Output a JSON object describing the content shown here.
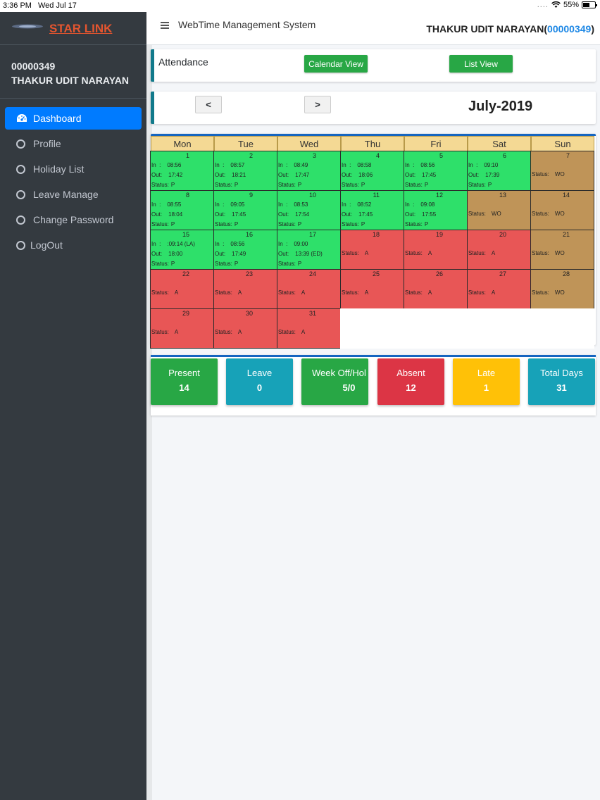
{
  "statusbar": {
    "time": "3:36 PM",
    "date": "Wed Jul 17",
    "signal": "....",
    "battery": "55%",
    "battery_level": 0.55
  },
  "sidebar": {
    "brand": "STAR LINK",
    "user_id": "00000349",
    "user_name": "THAKUR UDIT NARAYAN",
    "items": [
      {
        "label": "Dashboard",
        "icon": "tachometer-icon",
        "active": true
      },
      {
        "label": "Profile",
        "icon": "circle-icon"
      },
      {
        "label": "Holiday List",
        "icon": "circle-icon"
      },
      {
        "label": "Leave Manage",
        "icon": "circle-icon"
      },
      {
        "label": "Change Password",
        "icon": "circle-icon"
      },
      {
        "label": "LogOut",
        "icon": "circle-icon"
      }
    ]
  },
  "header": {
    "app_title": "WebTime Management System",
    "user_name": "THAKUR UDIT NARAYAN",
    "user_id": "00000349",
    "paren_open": "(",
    "paren_close": ")"
  },
  "attendance": {
    "label": "Attendance",
    "calendar_view": "Calendar View",
    "list_view": "List View"
  },
  "month_nav": {
    "prev": "<",
    "next": ">",
    "title": "July-2019"
  },
  "calendar": {
    "days": [
      "Mon",
      "Tue",
      "Wed",
      "Thu",
      "Fri",
      "Sat",
      "Sun"
    ],
    "in_label": "In  :",
    "out_label": "Out:",
    "status_label": "Status:",
    "cells": [
      {
        "day": "1",
        "status": "P",
        "in": "08:56",
        "out": "17:42"
      },
      {
        "day": "2",
        "status": "P",
        "in": "08:57",
        "out": "18:21"
      },
      {
        "day": "3",
        "status": "P",
        "in": "08:49",
        "out": "17:47"
      },
      {
        "day": "4",
        "status": "P",
        "in": "08:58",
        "out": "18:06"
      },
      {
        "day": "5",
        "status": "P",
        "in": "08:56",
        "out": "17:45"
      },
      {
        "day": "6",
        "status": "P",
        "in": "09:10",
        "out": "17:39"
      },
      {
        "day": "7",
        "status": "WO"
      },
      {
        "day": "8",
        "status": "P",
        "in": "08:55",
        "out": "18:04"
      },
      {
        "day": "9",
        "status": "P",
        "in": "09:05",
        "out": "17:45"
      },
      {
        "day": "10",
        "status": "P",
        "in": "08:53",
        "out": "17:54"
      },
      {
        "day": "11",
        "status": "P",
        "in": "08:52",
        "out": "17:45"
      },
      {
        "day": "12",
        "status": "P",
        "in": "09:08",
        "out": "17:55"
      },
      {
        "day": "13",
        "status": "WO"
      },
      {
        "day": "14",
        "status": "WO"
      },
      {
        "day": "15",
        "status": "P",
        "in": ":09:14 (LA)",
        "out": "18:00"
      },
      {
        "day": "16",
        "status": "P",
        "in": "08:56",
        "out": "17:49"
      },
      {
        "day": "17",
        "status": "P",
        "in": "09:00",
        "out": "13:39 (ED)"
      },
      {
        "day": "18",
        "status": "A"
      },
      {
        "day": "19",
        "status": "A"
      },
      {
        "day": "20",
        "status": "A"
      },
      {
        "day": "21",
        "status": "WO"
      },
      {
        "day": "22",
        "status": "A"
      },
      {
        "day": "23",
        "status": "A"
      },
      {
        "day": "24",
        "status": "A"
      },
      {
        "day": "25",
        "status": "A"
      },
      {
        "day": "26",
        "status": "A"
      },
      {
        "day": "27",
        "status": "A"
      },
      {
        "day": "28",
        "status": "WO"
      },
      {
        "day": "29",
        "status": "A"
      },
      {
        "day": "30",
        "status": "A"
      },
      {
        "day": "31",
        "status": "A"
      }
    ]
  },
  "stats": [
    {
      "title": "Present",
      "value": "14",
      "color": "#28a745"
    },
    {
      "title": "Leave",
      "value": "0",
      "color": "#17a2b8"
    },
    {
      "title": "Week Off/Hol",
      "value": "5/0",
      "color": "#28a745"
    },
    {
      "title": "Absent",
      "value": "12",
      "color": "#dc3545"
    },
    {
      "title": "Late",
      "value": "1",
      "color": "#ffc107"
    },
    {
      "title": "Total Days",
      "value": "31",
      "color": "#17a2b8"
    }
  ]
}
